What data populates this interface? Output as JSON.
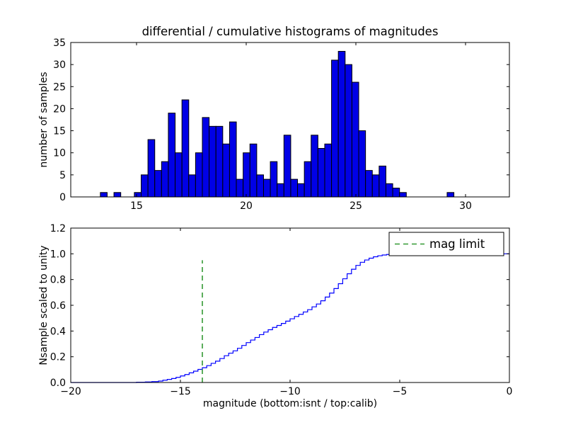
{
  "figure": {
    "background": "#ffffff",
    "axis_color": "#000000"
  },
  "chart_data": [
    {
      "type": "bar",
      "title": "differential / cumulative histograms of magnitudes",
      "xlabel": "",
      "ylabel": "number of samples",
      "xlim": [
        12,
        32
      ],
      "ylim": [
        0,
        35
      ],
      "xticks": [
        15,
        20,
        25,
        30
      ],
      "xtick_labels": [
        "15",
        "20",
        "25",
        "30"
      ],
      "yticks": [
        0,
        5,
        10,
        15,
        20,
        25,
        30,
        35
      ],
      "ytick_labels": [
        "0",
        "5",
        "10",
        "15",
        "20",
        "25",
        "30",
        "35"
      ],
      "grid": false,
      "bar_color": "#0000e6",
      "bar_edge_color": "#000000",
      "bin_start": 13.35,
      "bin_width": 0.31,
      "values": [
        1,
        0,
        1,
        0,
        0,
        1,
        5,
        13,
        6,
        8,
        19,
        10,
        22,
        5,
        10,
        18,
        16,
        16,
        12,
        17,
        4,
        10,
        12,
        5,
        4,
        8,
        3,
        14,
        4,
        3,
        8,
        14,
        11,
        12,
        31,
        33,
        30,
        26,
        15,
        6,
        5,
        7,
        3,
        2,
        1,
        0,
        0,
        0,
        0,
        0,
        0,
        1
      ]
    },
    {
      "type": "line",
      "style": "step",
      "title": "",
      "xlabel": "magnitude (bottom:isnt / top:calib)",
      "ylabel": "Nsample scaled to unity",
      "xlim": [
        -20,
        0
      ],
      "ylim": [
        0,
        1.2
      ],
      "xticks": [
        -20,
        -15,
        -10,
        -5,
        0
      ],
      "xtick_labels": [
        "−20",
        "−15",
        "−10",
        "−5",
        "0"
      ],
      "yticks": [
        0,
        0.2,
        0.4,
        0.6,
        0.8,
        1.0,
        1.2
      ],
      "ytick_labels": [
        "0.0",
        "0.2",
        "0.4",
        "0.6",
        "0.8",
        "1.0",
        "1.2"
      ],
      "grid": false,
      "line_color": "#0000ff",
      "points": [
        [
          -20,
          0
        ],
        [
          -17.2,
          0
        ],
        [
          -17.0,
          0.002
        ],
        [
          -16.6,
          0.004
        ],
        [
          -16.3,
          0.007
        ],
        [
          -16.0,
          0.011
        ],
        [
          -15.8,
          0.018
        ],
        [
          -15.6,
          0.024
        ],
        [
          -15.4,
          0.031
        ],
        [
          -15.2,
          0.04
        ],
        [
          -15.0,
          0.051
        ],
        [
          -14.8,
          0.062
        ],
        [
          -14.6,
          0.075
        ],
        [
          -14.4,
          0.088
        ],
        [
          -14.2,
          0.102
        ],
        [
          -14.0,
          0.115
        ],
        [
          -13.8,
          0.131
        ],
        [
          -13.6,
          0.149
        ],
        [
          -13.4,
          0.166
        ],
        [
          -13.2,
          0.186
        ],
        [
          -13.0,
          0.208
        ],
        [
          -12.8,
          0.228
        ],
        [
          -12.6,
          0.246
        ],
        [
          -12.4,
          0.266
        ],
        [
          -12.2,
          0.288
        ],
        [
          -12.0,
          0.31
        ],
        [
          -11.8,
          0.33
        ],
        [
          -11.6,
          0.35
        ],
        [
          -11.4,
          0.372
        ],
        [
          -11.2,
          0.392
        ],
        [
          -11.0,
          0.41
        ],
        [
          -10.8,
          0.428
        ],
        [
          -10.6,
          0.443
        ],
        [
          -10.4,
          0.459
        ],
        [
          -10.2,
          0.477
        ],
        [
          -10.0,
          0.495
        ],
        [
          -9.8,
          0.513
        ],
        [
          -9.6,
          0.53
        ],
        [
          -9.4,
          0.548
        ],
        [
          -9.2,
          0.566
        ],
        [
          -9.0,
          0.588
        ],
        [
          -8.8,
          0.61
        ],
        [
          -8.6,
          0.635
        ],
        [
          -8.4,
          0.664
        ],
        [
          -8.2,
          0.695
        ],
        [
          -8.0,
          0.73
        ],
        [
          -7.8,
          0.768
        ],
        [
          -7.6,
          0.806
        ],
        [
          -7.4,
          0.845
        ],
        [
          -7.2,
          0.88
        ],
        [
          -7.0,
          0.91
        ],
        [
          -6.8,
          0.934
        ],
        [
          -6.6,
          0.952
        ],
        [
          -6.4,
          0.966
        ],
        [
          -6.2,
          0.977
        ],
        [
          -6.0,
          0.985
        ],
        [
          -5.8,
          0.991
        ],
        [
          -5.6,
          0.995
        ],
        [
          -5.4,
          0.998
        ],
        [
          -5.2,
          1.0
        ],
        [
          0,
          1.0
        ]
      ],
      "mag_limit": {
        "x": -14,
        "y0": 0,
        "y1": 0.95,
        "color": "#339933",
        "dash": "7,5",
        "label": "mag limit"
      },
      "legend": {
        "label": "mag limit",
        "position": "upper right"
      }
    }
  ]
}
